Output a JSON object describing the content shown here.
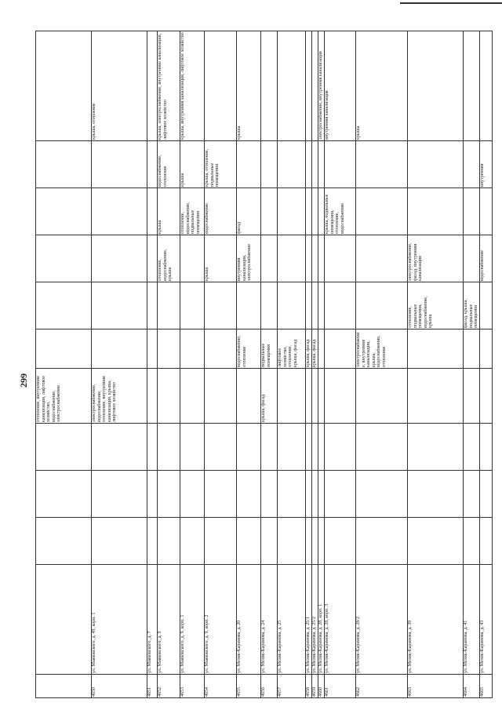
{
  "page_number": "299",
  "table": {
    "rows": [
      [
        null,
        null,
        null,
        null,
        null,
        "отопление, внутренняя канализация, лифтовое хозяйство, водоснабжение, электроснабжение",
        null,
        null,
        null,
        null,
        null,
        null
      ],
      [
        "4650",
        "ул. Маяковского, д. 49, корп. 1",
        null,
        null,
        null,
        "электроснабжение, водоснабжение, отопление, внутренняя канализация, крыша, лифтовое хозяйство",
        null,
        null,
        null,
        null,
        null,
        "крыша, отопление"
      ],
      [
        "4651",
        "ул. Маяковского, д. 7",
        null,
        null,
        null,
        null,
        null,
        null,
        null,
        null,
        null,
        null
      ],
      [
        "4652",
        "ул. Маяковского, д. 9",
        null,
        null,
        null,
        null,
        null,
        null,
        "отопление, водоснабжение, крыша",
        "крыша",
        "водоснабжение, отопление",
        "крыша, электроснабжение, внутренние канализации, лифтовое хозяйство"
      ],
      [
        "4653",
        "ул. Маяковского, д. 9, корп. 1",
        null,
        null,
        null,
        null,
        null,
        null,
        null,
        "отопление, водоснабжение, подвальные помещения",
        "крыша",
        "крыша, внутренняя канализация, лифтовое хозяйство"
      ],
      [
        "4654",
        "ул. Маяковского, д. 9, корп. 2",
        null,
        null,
        null,
        null,
        null,
        null,
        "крыша",
        "водоснабжение",
        "крыша, отопление, подвальные помещения",
        null
      ],
      [
        "4655",
        "ул. Мелик-Карамова, д. 20",
        null,
        null,
        null,
        null,
        "водоснабжение, отопление",
        null,
        "внутренняя канализация, электроснабжение",
        "фасад",
        null,
        "крыша"
      ],
      [
        "4656",
        "ул. Мелик-Карамова, д. 24",
        null,
        null,
        null,
        "крыша, фасад",
        "подвальные помещения",
        null,
        null,
        null,
        null,
        null
      ],
      [
        "4657",
        "ул. Мелик-Карамова, д. 25",
        null,
        null,
        null,
        null,
        "лифтовое хозяйство, отопление, крыша, фасад",
        null,
        null,
        null,
        null,
        null
      ],
      [
        "4658",
        "ул. Мелик-Карамова, д. 25/1",
        null,
        null,
        null,
        null,
        "крыша, фасад",
        null,
        null,
        null,
        null,
        null
      ],
      [
        "4659",
        "ул. Мелик-Карамова, д. 25/2",
        null,
        null,
        null,
        null,
        "крыша, фасад",
        null,
        null,
        null,
        null,
        null
      ],
      [
        "4660",
        "ул. Мелик-Карамова, д. 28, корп. 1",
        null,
        null,
        null,
        null,
        null,
        null,
        null,
        null,
        null,
        "электроснабжение, внутренняя канализация"
      ],
      [
        "4661",
        "ул. Мелик-Карамова, д. 28, корп. 3",
        null,
        null,
        null,
        null,
        null,
        null,
        null,
        "крыша, подвальные помещения, отопление, водоснабжение",
        null,
        "внутренняя канализация"
      ],
      [
        "4662",
        "ул. Мелик-Карамова, д. 28/2",
        null,
        null,
        null,
        null,
        "электроснабжение, внутренние канализации, крыша, водоснабжение, отопление",
        null,
        null,
        null,
        null,
        "крыша"
      ],
      [
        "4663",
        "ул. Мелик-Карамова, д. 39",
        null,
        null,
        null,
        null,
        null,
        "отопление, подвальные помещения, водоснабжение, крыша",
        "электроснабжение, фасад, внутренняя канализация",
        null,
        null,
        null
      ],
      [
        "4664",
        "ул. Мелик-Карамова, д. 41",
        null,
        null,
        null,
        null,
        null,
        "фасад, крыша, подвальные помещения",
        null,
        null,
        null,
        null
      ],
      [
        "4665",
        "ул. Мелик-Карамова, д. 43",
        null,
        null,
        null,
        null,
        null,
        null,
        "водоснабжение",
        null,
        "внутренняя",
        null
      ]
    ]
  }
}
